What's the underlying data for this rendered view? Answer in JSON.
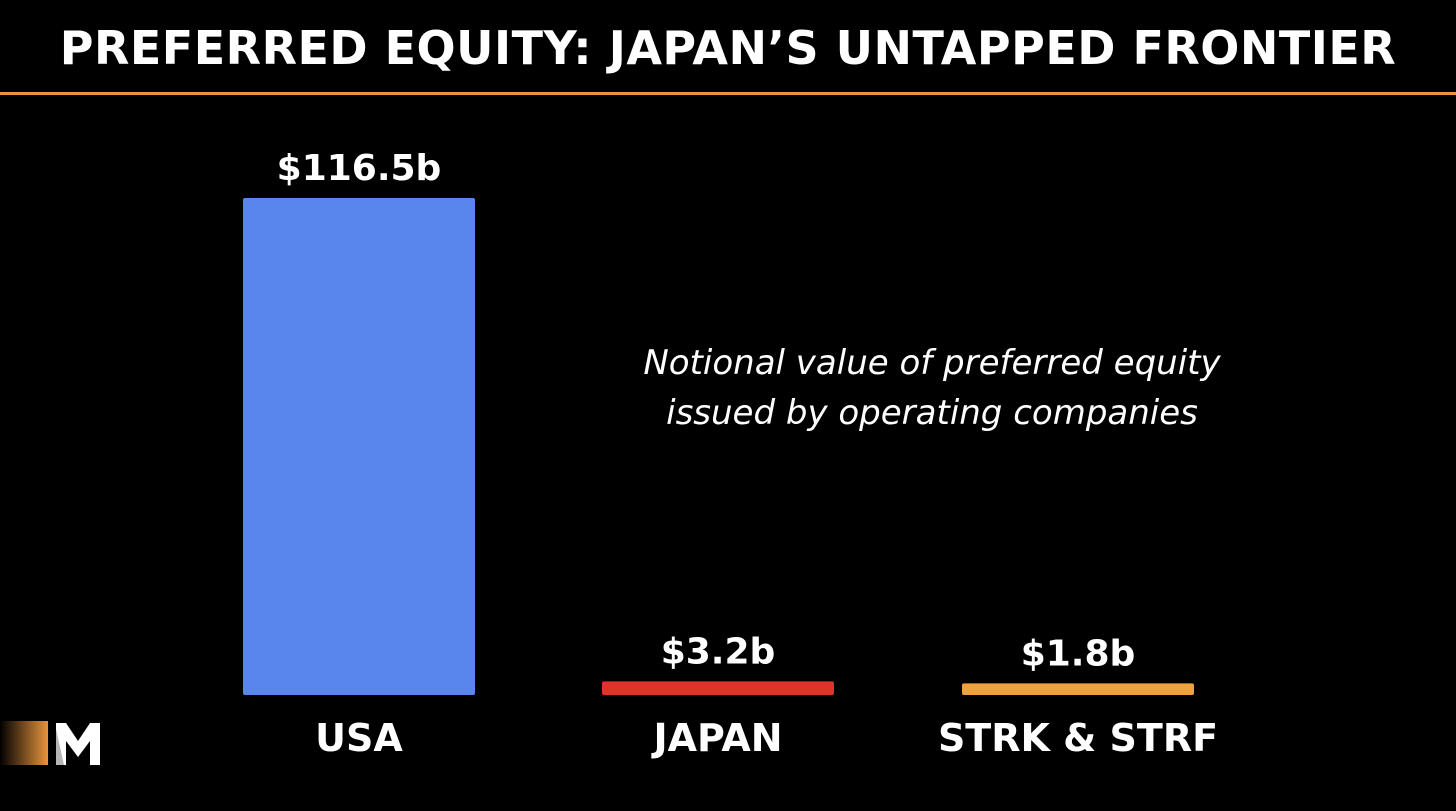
{
  "header": {
    "title": "PREFERRED EQUITY: JAPAN’S UNTAPPED FRONTIER"
  },
  "annotation": {
    "lines": [
      "Notional value of preferred equity",
      "issued by operating companies"
    ]
  },
  "logo": {
    "icon": "m-logo-icon"
  },
  "colors": {
    "background": "#000000",
    "accent": "#e8953e",
    "text": "#ffffff",
    "usa": "#5886ed",
    "japan": "#e0342a",
    "strk_strf": "#f0a23c"
  },
  "chart_data": {
    "type": "bar",
    "categories": [
      "USA",
      "JAPAN",
      "STRK & STRF"
    ],
    "values": [
      116.5,
      3.2,
      1.8
    ],
    "value_labels": [
      "$116.5b",
      "$3.2b",
      "$1.8b"
    ],
    "colors": [
      "#5886ed",
      "#e0342a",
      "#f0a23c"
    ],
    "unit": "$b",
    "ylim": [
      0,
      116.5
    ],
    "grid": false,
    "legend": "none"
  }
}
